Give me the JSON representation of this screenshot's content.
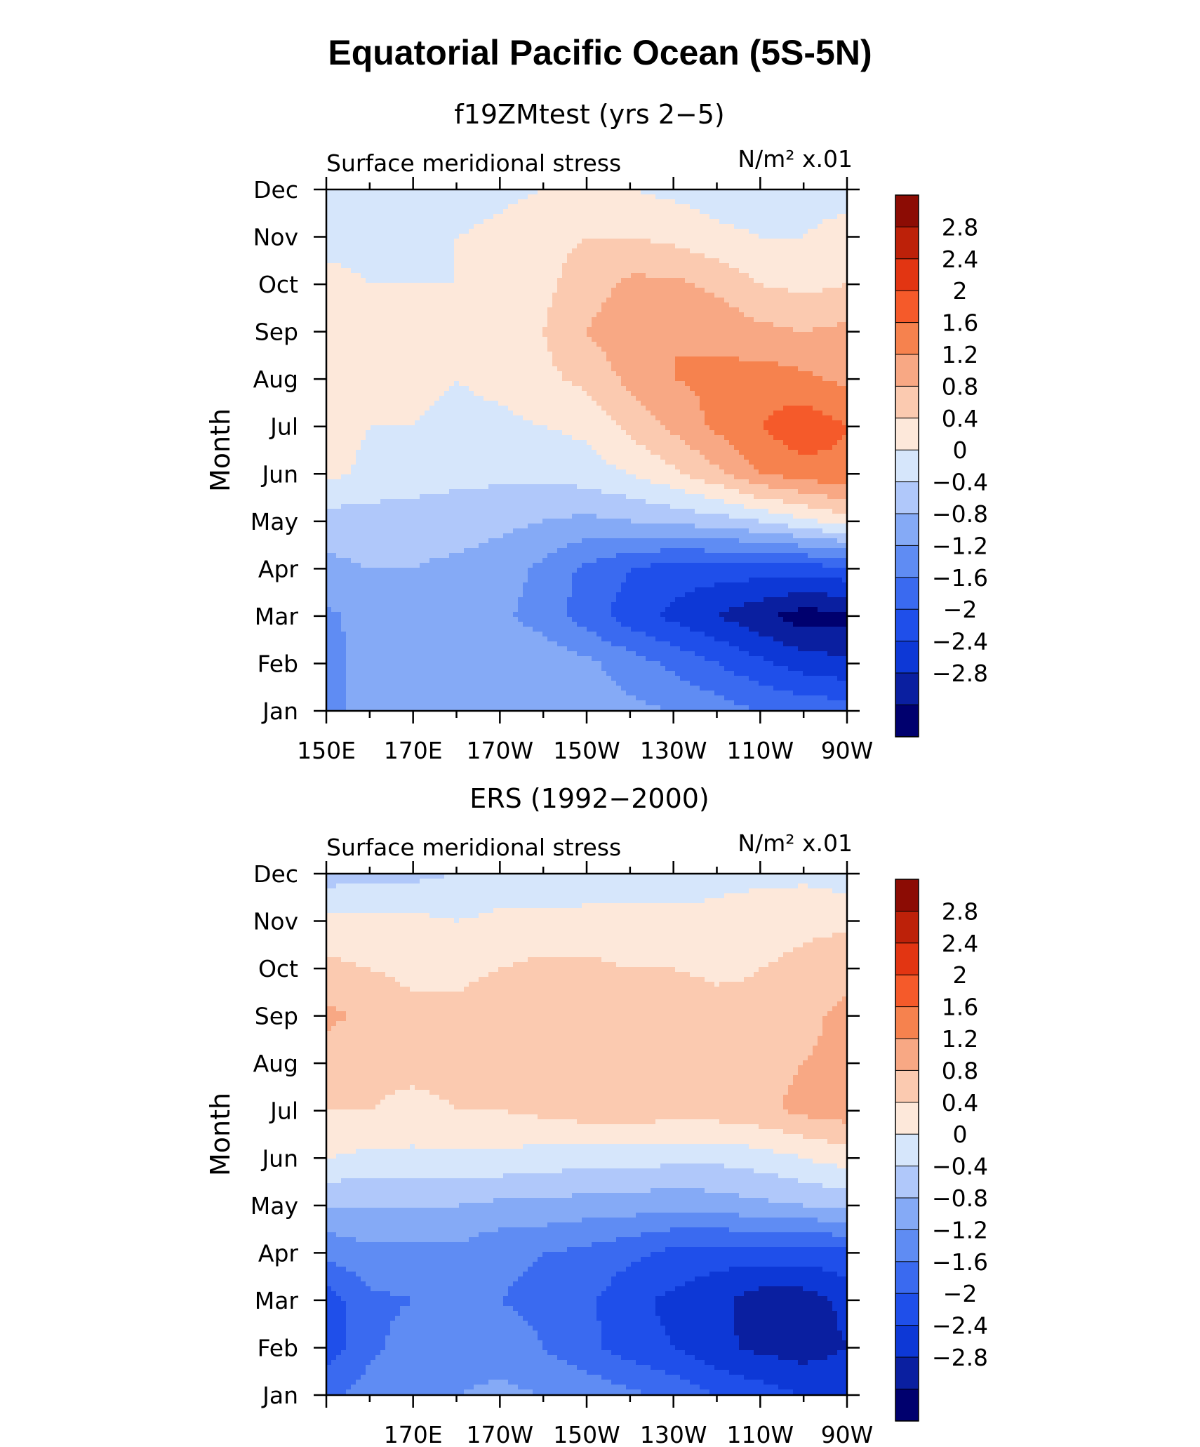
{
  "figure": {
    "title": "Equatorial Pacific Ocean (5S-5N)"
  },
  "chart_data": [
    {
      "type": "heatmap",
      "subtitle": "f19ZMtest (yrs 2−5)",
      "left_label": "Surface meridional stress",
      "right_label": "N/m² x.01",
      "ylabel": "Month",
      "xlabel": "",
      "x_tick_labels": [
        "150E",
        "170E",
        "170W",
        "150W",
        "130W",
        "110W",
        "90W"
      ],
      "x_range": [
        150,
        270
      ],
      "y_tick_labels": [
        "Jan",
        "Feb",
        "Mar",
        "Apr",
        "May",
        "Jun",
        "Jul",
        "Aug",
        "Sep",
        "Oct",
        "Nov",
        "Dec"
      ],
      "colorbar": {
        "levels": [
          -2.8,
          -2.4,
          -2,
          -1.6,
          -1.2,
          -0.8,
          -0.4,
          0,
          0.4,
          0.8,
          1.2,
          1.6,
          2,
          2.4,
          2.8
        ],
        "labels": [
          "2.8",
          "2.4",
          "2",
          "1.6",
          "1.2",
          "0.8",
          "0.4",
          "0",
          "−0.4",
          "−0.8",
          "−1.2",
          "−1.6",
          "−2",
          "−2.4",
          "−2.8"
        ]
      },
      "x": [
        150,
        160,
        170,
        180,
        190,
        200,
        210,
        220,
        230,
        240,
        250,
        260,
        270
      ],
      "z": [
        [
          -1.0,
          -0.6,
          -0.5,
          -0.5,
          -0.5,
          -0.5,
          -0.6,
          -0.7,
          -0.8,
          -1.0,
          -1.2,
          -1.3,
          -1.4
        ],
        [
          -1.0,
          -0.6,
          -0.5,
          -0.5,
          -0.4,
          -0.5,
          -0.7,
          -1.0,
          -1.3,
          -1.6,
          -1.9,
          -2.2,
          -2.3
        ],
        [
          -0.9,
          -0.6,
          -0.5,
          -0.6,
          -0.7,
          -1.0,
          -1.4,
          -1.8,
          -2.1,
          -2.4,
          -2.7,
          -3.0,
          -2.9
        ],
        [
          -0.5,
          -0.4,
          -0.4,
          -0.5,
          -0.6,
          -0.9,
          -1.3,
          -1.6,
          -1.8,
          -1.8,
          -1.8,
          -1.8,
          -1.7
        ],
        [
          -0.2,
          -0.2,
          -0.2,
          -0.2,
          -0.3,
          -0.4,
          -0.5,
          -0.4,
          -0.3,
          -0.2,
          0.0,
          0.3,
          0.6
        ],
        [
          0.5,
          0.3,
          0.2,
          0.1,
          0.1,
          0.1,
          0.2,
          0.4,
          0.7,
          1.1,
          1.6,
          1.8,
          1.9
        ],
        [
          0.6,
          0.4,
          0.4,
          0.3,
          0.3,
          0.4,
          0.5,
          0.9,
          1.3,
          1.7,
          2.0,
          2.3,
          2.0
        ],
        [
          0.6,
          0.5,
          0.5,
          0.4,
          0.5,
          0.7,
          0.9,
          1.3,
          1.6,
          1.7,
          1.8,
          1.7,
          1.5
        ],
        [
          0.6,
          0.5,
          0.5,
          0.5,
          0.6,
          0.8,
          1.2,
          1.5,
          1.6,
          1.5,
          1.3,
          1.2,
          1.3
        ],
        [
          0.5,
          0.4,
          0.4,
          0.4,
          0.5,
          0.7,
          1.0,
          1.3,
          1.3,
          1.1,
          0.8,
          0.7,
          0.8
        ],
        [
          0.3,
          0.3,
          0.3,
          0.4,
          0.5,
          0.7,
          0.8,
          0.8,
          0.7,
          0.5,
          0.4,
          0.4,
          0.5
        ],
        [
          0.0,
          0.1,
          0.1,
          0.2,
          0.3,
          0.4,
          0.5,
          0.4,
          0.3,
          0.2,
          0.2,
          0.3,
          0.3
        ]
      ]
    },
    {
      "type": "heatmap",
      "subtitle": "ERS (1992−2000)",
      "left_label": "Surface meridional stress",
      "right_label": "N/m² x.01",
      "ylabel": "Month",
      "xlabel": "",
      "x_tick_labels": [
        "170E",
        "170W",
        "150W",
        "130W",
        "110W",
        "90W"
      ],
      "x_range": [
        150,
        270
      ],
      "y_tick_labels": [
        "Jan",
        "Feb",
        "Mar",
        "Apr",
        "May",
        "Jun",
        "Jul",
        "Aug",
        "Sep",
        "Oct",
        "Nov",
        "Dec"
      ],
      "colorbar": {
        "levels": [
          -2.8,
          -2.4,
          -2,
          -1.6,
          -1.2,
          -0.8,
          -0.4,
          0,
          0.4,
          0.8,
          1.2,
          1.6,
          2,
          2.4,
          2.8
        ],
        "labels": [
          "2.8",
          "2.4",
          "2",
          "1.6",
          "1.2",
          "0.8",
          "0.4",
          "0",
          "−0.4",
          "−0.8",
          "−1.2",
          "−1.6",
          "−2",
          "−2.4",
          "−2.8"
        ]
      },
      "x": [
        150,
        160,
        170,
        180,
        190,
        200,
        210,
        220,
        230,
        240,
        250,
        260,
        270
      ],
      "z": [
        [
          -1.3,
          -1.0,
          -0.8,
          -0.8,
          -0.7,
          -0.8,
          -0.9,
          -1.1,
          -1.3,
          -1.6,
          -1.8,
          -2.0,
          -2.1
        ],
        [
          -1.8,
          -1.3,
          -1.0,
          -1.0,
          -1.0,
          -1.2,
          -1.5,
          -1.8,
          -2.0,
          -2.3,
          -2.5,
          -2.6,
          -2.4
        ],
        [
          -1.8,
          -1.3,
          -1.2,
          -1.1,
          -1.2,
          -1.3,
          -1.5,
          -1.9,
          -2.1,
          -2.3,
          -2.6,
          -2.6,
          -2.3
        ],
        [
          -1.1,
          -0.9,
          -0.9,
          -0.9,
          -1.1,
          -1.2,
          -1.3,
          -1.5,
          -1.7,
          -1.8,
          -1.8,
          -1.8,
          -1.7
        ],
        [
          -0.4,
          -0.4,
          -0.4,
          -0.4,
          -0.5,
          -0.5,
          -0.6,
          -0.6,
          -0.7,
          -0.6,
          -0.5,
          -0.4,
          -0.3
        ],
        [
          0.4,
          0.3,
          0.3,
          0.3,
          0.3,
          0.2,
          0.2,
          0.2,
          0.1,
          0.1,
          0.2,
          0.4,
          0.6
        ],
        [
          0.8,
          0.8,
          0.7,
          0.8,
          0.8,
          0.9,
          1.0,
          1.0,
          1.0,
          1.0,
          1.1,
          1.3,
          1.4
        ],
        [
          1.0,
          0.9,
          0.9,
          0.9,
          0.9,
          1.0,
          1.0,
          1.1,
          1.1,
          1.1,
          1.1,
          1.2,
          1.3
        ],
        [
          1.3,
          1.1,
          0.9,
          0.9,
          1.0,
          1.1,
          1.1,
          1.1,
          1.1,
          1.0,
          0.9,
          1.1,
          1.3
        ],
        [
          0.9,
          0.8,
          0.7,
          0.7,
          0.8,
          0.9,
          0.9,
          0.8,
          0.8,
          0.7,
          0.8,
          0.9,
          1.1
        ],
        [
          0.5,
          0.5,
          0.5,
          0.4,
          0.5,
          0.5,
          0.5,
          0.5,
          0.5,
          0.5,
          0.6,
          0.7,
          0.7
        ],
        [
          -0.2,
          -0.1,
          -0.1,
          0.0,
          0.1,
          0.1,
          0.2,
          0.2,
          0.2,
          0.3,
          0.3,
          0.3,
          0.2
        ]
      ]
    }
  ],
  "palette": [
    "#00006e",
    "#0a1fa0",
    "#0d38d6",
    "#1f4fea",
    "#3a6af0",
    "#5f8cf3",
    "#85aaf6",
    "#b0c8fa",
    "#d6e6fb",
    "#fde8da",
    "#fbcab0",
    "#f8a884",
    "#f6824e",
    "#f55a2a",
    "#e23512",
    "#bd2109",
    "#8c0c04"
  ]
}
